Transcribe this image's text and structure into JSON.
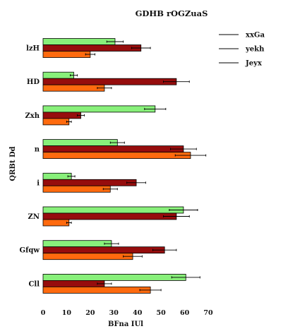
{
  "chart_data": {
    "type": "bar",
    "orientation": "horizontal",
    "title": "GDHB rOGZuaS",
    "xlabel": "BFna IUl",
    "ylabel": "QRBt Dd",
    "categories": [
      "lzH",
      "HD",
      "Zxh",
      "n",
      "i",
      "ZN",
      "Gfqw",
      "Cll"
    ],
    "series": [
      {
        "name": "xxGa",
        "color": "#88f07a",
        "values": [
          30.5,
          13.0,
          47.5,
          31.5,
          12.0,
          59.5,
          29.0,
          60.5
        ],
        "errors": [
          3.5,
          1.5,
          4.5,
          3.0,
          1.5,
          6.0,
          3.0,
          6.0
        ]
      },
      {
        "name": "yekh",
        "color": "#960d0d",
        "values": [
          41.5,
          56.5,
          16.0,
          59.5,
          39.5,
          56.5,
          51.5,
          26.0
        ],
        "errors": [
          4.0,
          5.5,
          1.5,
          5.5,
          4.0,
          5.5,
          5.0,
          3.0
        ]
      },
      {
        "name": "Jeyx",
        "color": "#ff6a0e",
        "values": [
          20.0,
          26.0,
          11.0,
          62.5,
          28.5,
          11.0,
          38.0,
          45.5
        ],
        "errors": [
          2.0,
          3.0,
          1.0,
          6.5,
          3.0,
          1.0,
          4.0,
          4.5
        ]
      }
    ],
    "xlim": [
      0,
      70
    ],
    "xticks": [
      0,
      10,
      20,
      30,
      40,
      50,
      60,
      70
    ],
    "grid": false,
    "legend_position": "top-right"
  }
}
